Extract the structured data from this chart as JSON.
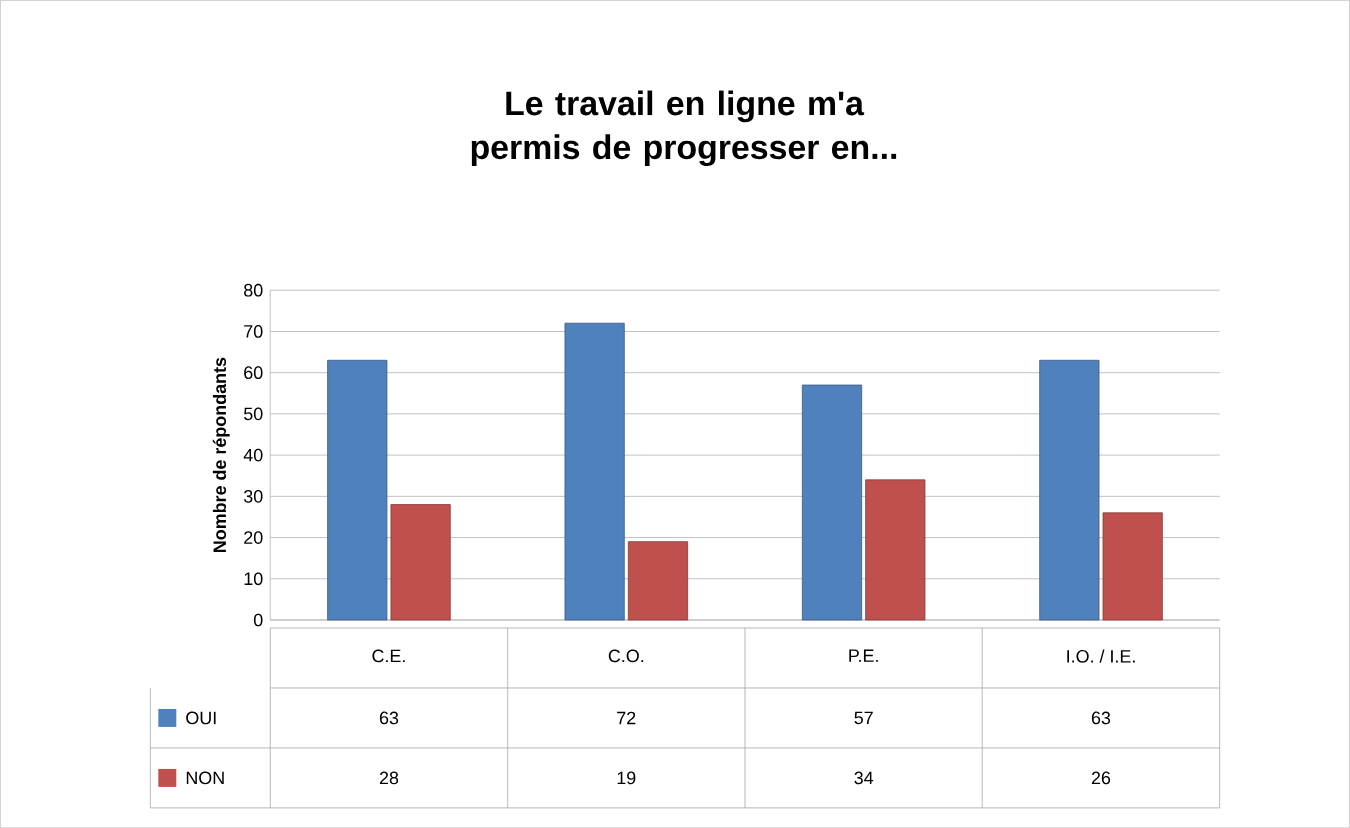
{
  "chart_data": {
    "type": "bar",
    "title": "Le travail en ligne m'a permis de progresser en...",
    "ylabel": "Nombre de répondants",
    "categories": [
      "C.E.",
      "C.O.",
      "P.E.",
      "I.O. / I.E."
    ],
    "series": [
      {
        "name": "OUI",
        "color": "#4f81bd",
        "values": [
          63,
          72,
          57,
          63
        ]
      },
      {
        "name": "NON",
        "color": "#c0504d",
        "values": [
          28,
          19,
          34,
          26
        ]
      }
    ],
    "ylim": [
      0,
      80
    ],
    "yticks": [
      0,
      10,
      20,
      30,
      40,
      50,
      60,
      70,
      80
    ],
    "grid": "y",
    "legend": "bottom",
    "data_labels": true
  }
}
